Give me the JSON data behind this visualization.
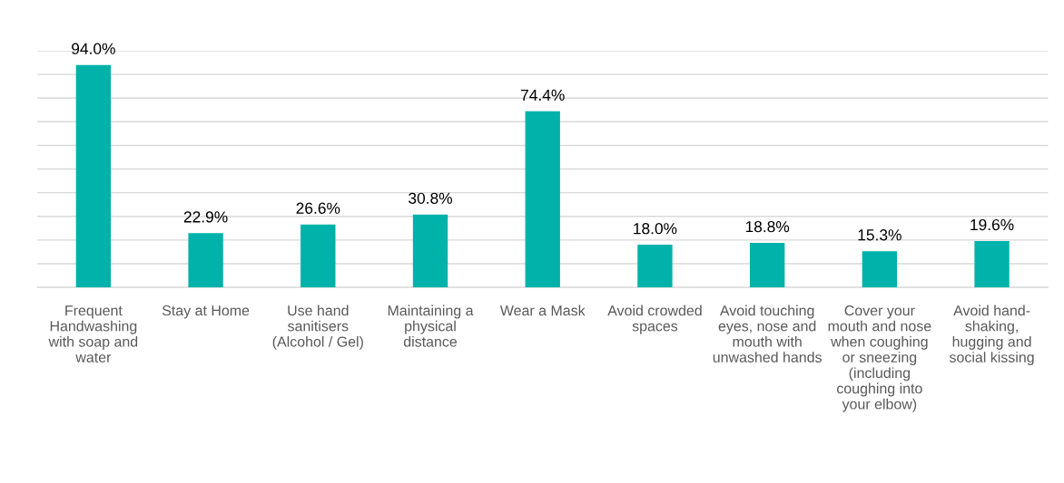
{
  "chart_data": {
    "type": "bar",
    "categories": [
      "Frequent Handwashing with soap and water",
      "Stay at Home",
      "Use hand sanitisers (Alcohol / Gel)",
      "Maintaining a physical distance",
      "Wear a Mask",
      "Avoid crowded spaces",
      "Avoid touching eyes, nose and mouth with unwashed hands",
      "Cover your mouth and nose when coughing or sneezing (including coughing into your elbow)",
      "Avoid hand-shaking, hugging and social kissing"
    ],
    "values": [
      94.0,
      22.9,
      26.6,
      30.8,
      74.4,
      18.0,
      18.8,
      15.3,
      19.6
    ],
    "value_labels": [
      "94.0%",
      "22.9%",
      "26.6%",
      "30.8%",
      "74.4%",
      "18.0%",
      "18.8%",
      "15.3%",
      "19.6%"
    ],
    "color": "#00b2a9",
    "ylim": [
      0,
      100
    ],
    "yticks": [
      {
        "value": 0,
        "label": null
      },
      {
        "value": 10,
        "label": null
      },
      {
        "value": 20,
        "label": null
      },
      {
        "value": 30,
        "label": null
      },
      {
        "value": 40,
        "label": null
      },
      {
        "value": 50,
        "label": null
      },
      {
        "value": 60,
        "label": null
      },
      {
        "value": 70,
        "label": null
      },
      {
        "value": 80,
        "label": null
      },
      {
        "value": 90,
        "label": null
      },
      {
        "value": 100,
        "label": null
      }
    ],
    "tick_labels": "x",
    "grid": "y",
    "legend": false
  }
}
